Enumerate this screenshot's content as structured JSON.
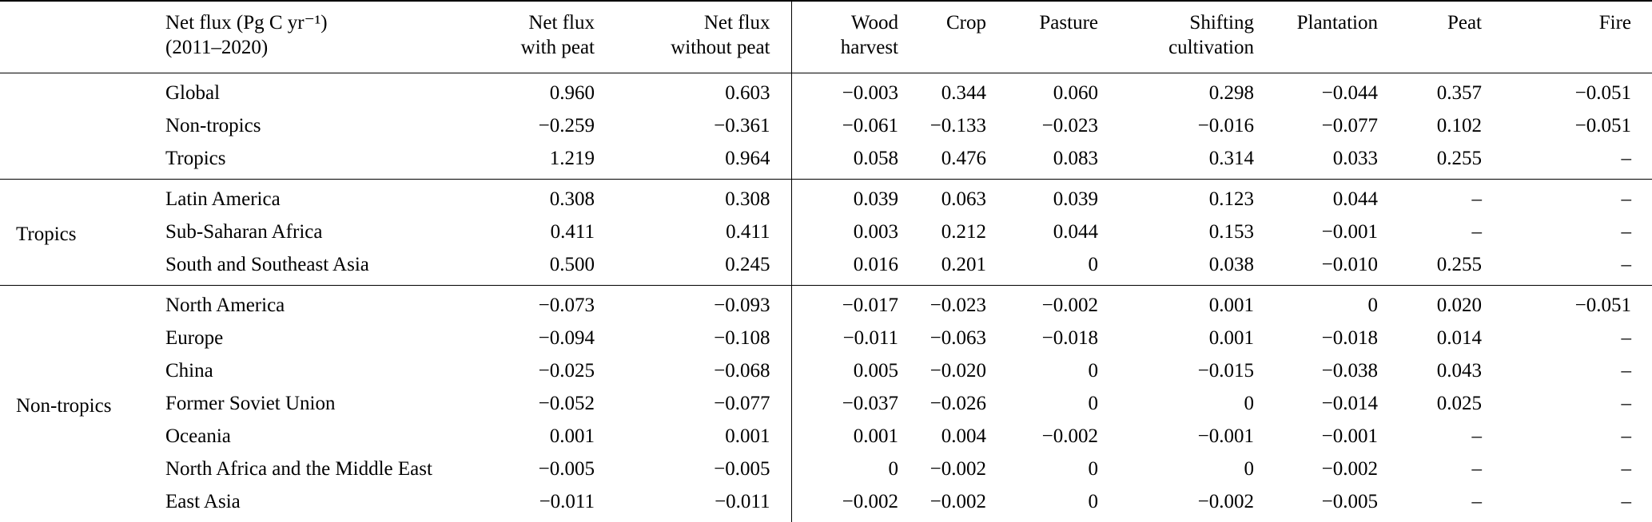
{
  "colors": {
    "text": "#000000",
    "background": "#ffffff",
    "rule": "#000000"
  },
  "table": {
    "title_semantic": "Net LULUCF flux by region and activity, 2011-2020",
    "columns": [
      {
        "id": "group",
        "lines": [],
        "align": "left"
      },
      {
        "id": "region",
        "lines": [
          "Net flux (Pg C yr⁻¹)",
          "(2011–2020)"
        ],
        "align": "left"
      },
      {
        "id": "with_peat",
        "lines": [
          "Net flux",
          "with peat"
        ],
        "align": "right"
      },
      {
        "id": "without_peat",
        "lines": [
          "Net flux",
          "without peat"
        ],
        "align": "right"
      },
      {
        "id": "wood_harvest",
        "lines": [
          "Wood",
          "harvest"
        ],
        "align": "right"
      },
      {
        "id": "crop",
        "lines": [
          "Crop"
        ],
        "align": "right"
      },
      {
        "id": "pasture",
        "lines": [
          "Pasture"
        ],
        "align": "right"
      },
      {
        "id": "shifting_cultivation",
        "lines": [
          "Shifting",
          "cultivation"
        ],
        "align": "right"
      },
      {
        "id": "plantation",
        "lines": [
          "Plantation"
        ],
        "align": "right"
      },
      {
        "id": "peat",
        "lines": [
          "Peat"
        ],
        "align": "right"
      },
      {
        "id": "fire",
        "lines": [
          "Fire"
        ],
        "align": "right"
      }
    ],
    "groups": [
      {
        "label": "",
        "rows": [
          {
            "region": "Global",
            "values": [
              "0.960",
              "0.603",
              "−0.003",
              "0.344",
              "0.060",
              "0.298",
              "−0.044",
              "0.357",
              "−0.051"
            ]
          },
          {
            "region": "Non-tropics",
            "values": [
              "−0.259",
              "−0.361",
              "−0.061",
              "−0.133",
              "−0.023",
              "−0.016",
              "−0.077",
              "0.102",
              "−0.051"
            ]
          },
          {
            "region": "Tropics",
            "values": [
              "1.219",
              "0.964",
              "0.058",
              "0.476",
              "0.083",
              "0.314",
              "0.033",
              "0.255",
              "–"
            ]
          }
        ]
      },
      {
        "label": "Tropics",
        "rows": [
          {
            "region": "Latin America",
            "values": [
              "0.308",
              "0.308",
              "0.039",
              "0.063",
              "0.039",
              "0.123",
              "0.044",
              "–",
              "–"
            ]
          },
          {
            "region": "Sub-Saharan Africa",
            "values": [
              "0.411",
              "0.411",
              "0.003",
              "0.212",
              "0.044",
              "0.153",
              "−0.001",
              "–",
              "–"
            ]
          },
          {
            "region": "South and Southeast Asia",
            "values": [
              "0.500",
              "0.245",
              "0.016",
              "0.201",
              "0",
              "0.038",
              "−0.010",
              "0.255",
              "–"
            ]
          }
        ]
      },
      {
        "label": "Non-tropics",
        "rows": [
          {
            "region": "North America",
            "values": [
              "−0.073",
              "−0.093",
              "−0.017",
              "−0.023",
              "−0.002",
              "0.001",
              "0",
              "0.020",
              "−0.051"
            ]
          },
          {
            "region": "Europe",
            "values": [
              "−0.094",
              "−0.108",
              "−0.011",
              "−0.063",
              "−0.018",
              "0.001",
              "−0.018",
              "0.014",
              "–"
            ]
          },
          {
            "region": "China",
            "values": [
              "−0.025",
              "−0.068",
              "0.005",
              "−0.020",
              "0",
              "−0.015",
              "−0.038",
              "0.043",
              "–"
            ]
          },
          {
            "region": "Former Soviet Union",
            "values": [
              "−0.052",
              "−0.077",
              "−0.037",
              "−0.026",
              "0",
              "0",
              "−0.014",
              "0.025",
              "–"
            ]
          },
          {
            "region": "Oceania",
            "values": [
              "0.001",
              "0.001",
              "0.001",
              "0.004",
              "−0.002",
              "−0.001",
              "−0.001",
              "–",
              "–"
            ]
          },
          {
            "region": "North Africa and the Middle East",
            "values": [
              "−0.005",
              "−0.005",
              "0",
              "−0.002",
              "0",
              "0",
              "−0.002",
              "–",
              "–"
            ]
          },
          {
            "region": "East Asia",
            "values": [
              "−0.011",
              "−0.011",
              "−0.002",
              "−0.002",
              "0",
              "−0.002",
              "−0.005",
              "–",
              "–"
            ]
          }
        ]
      }
    ]
  }
}
